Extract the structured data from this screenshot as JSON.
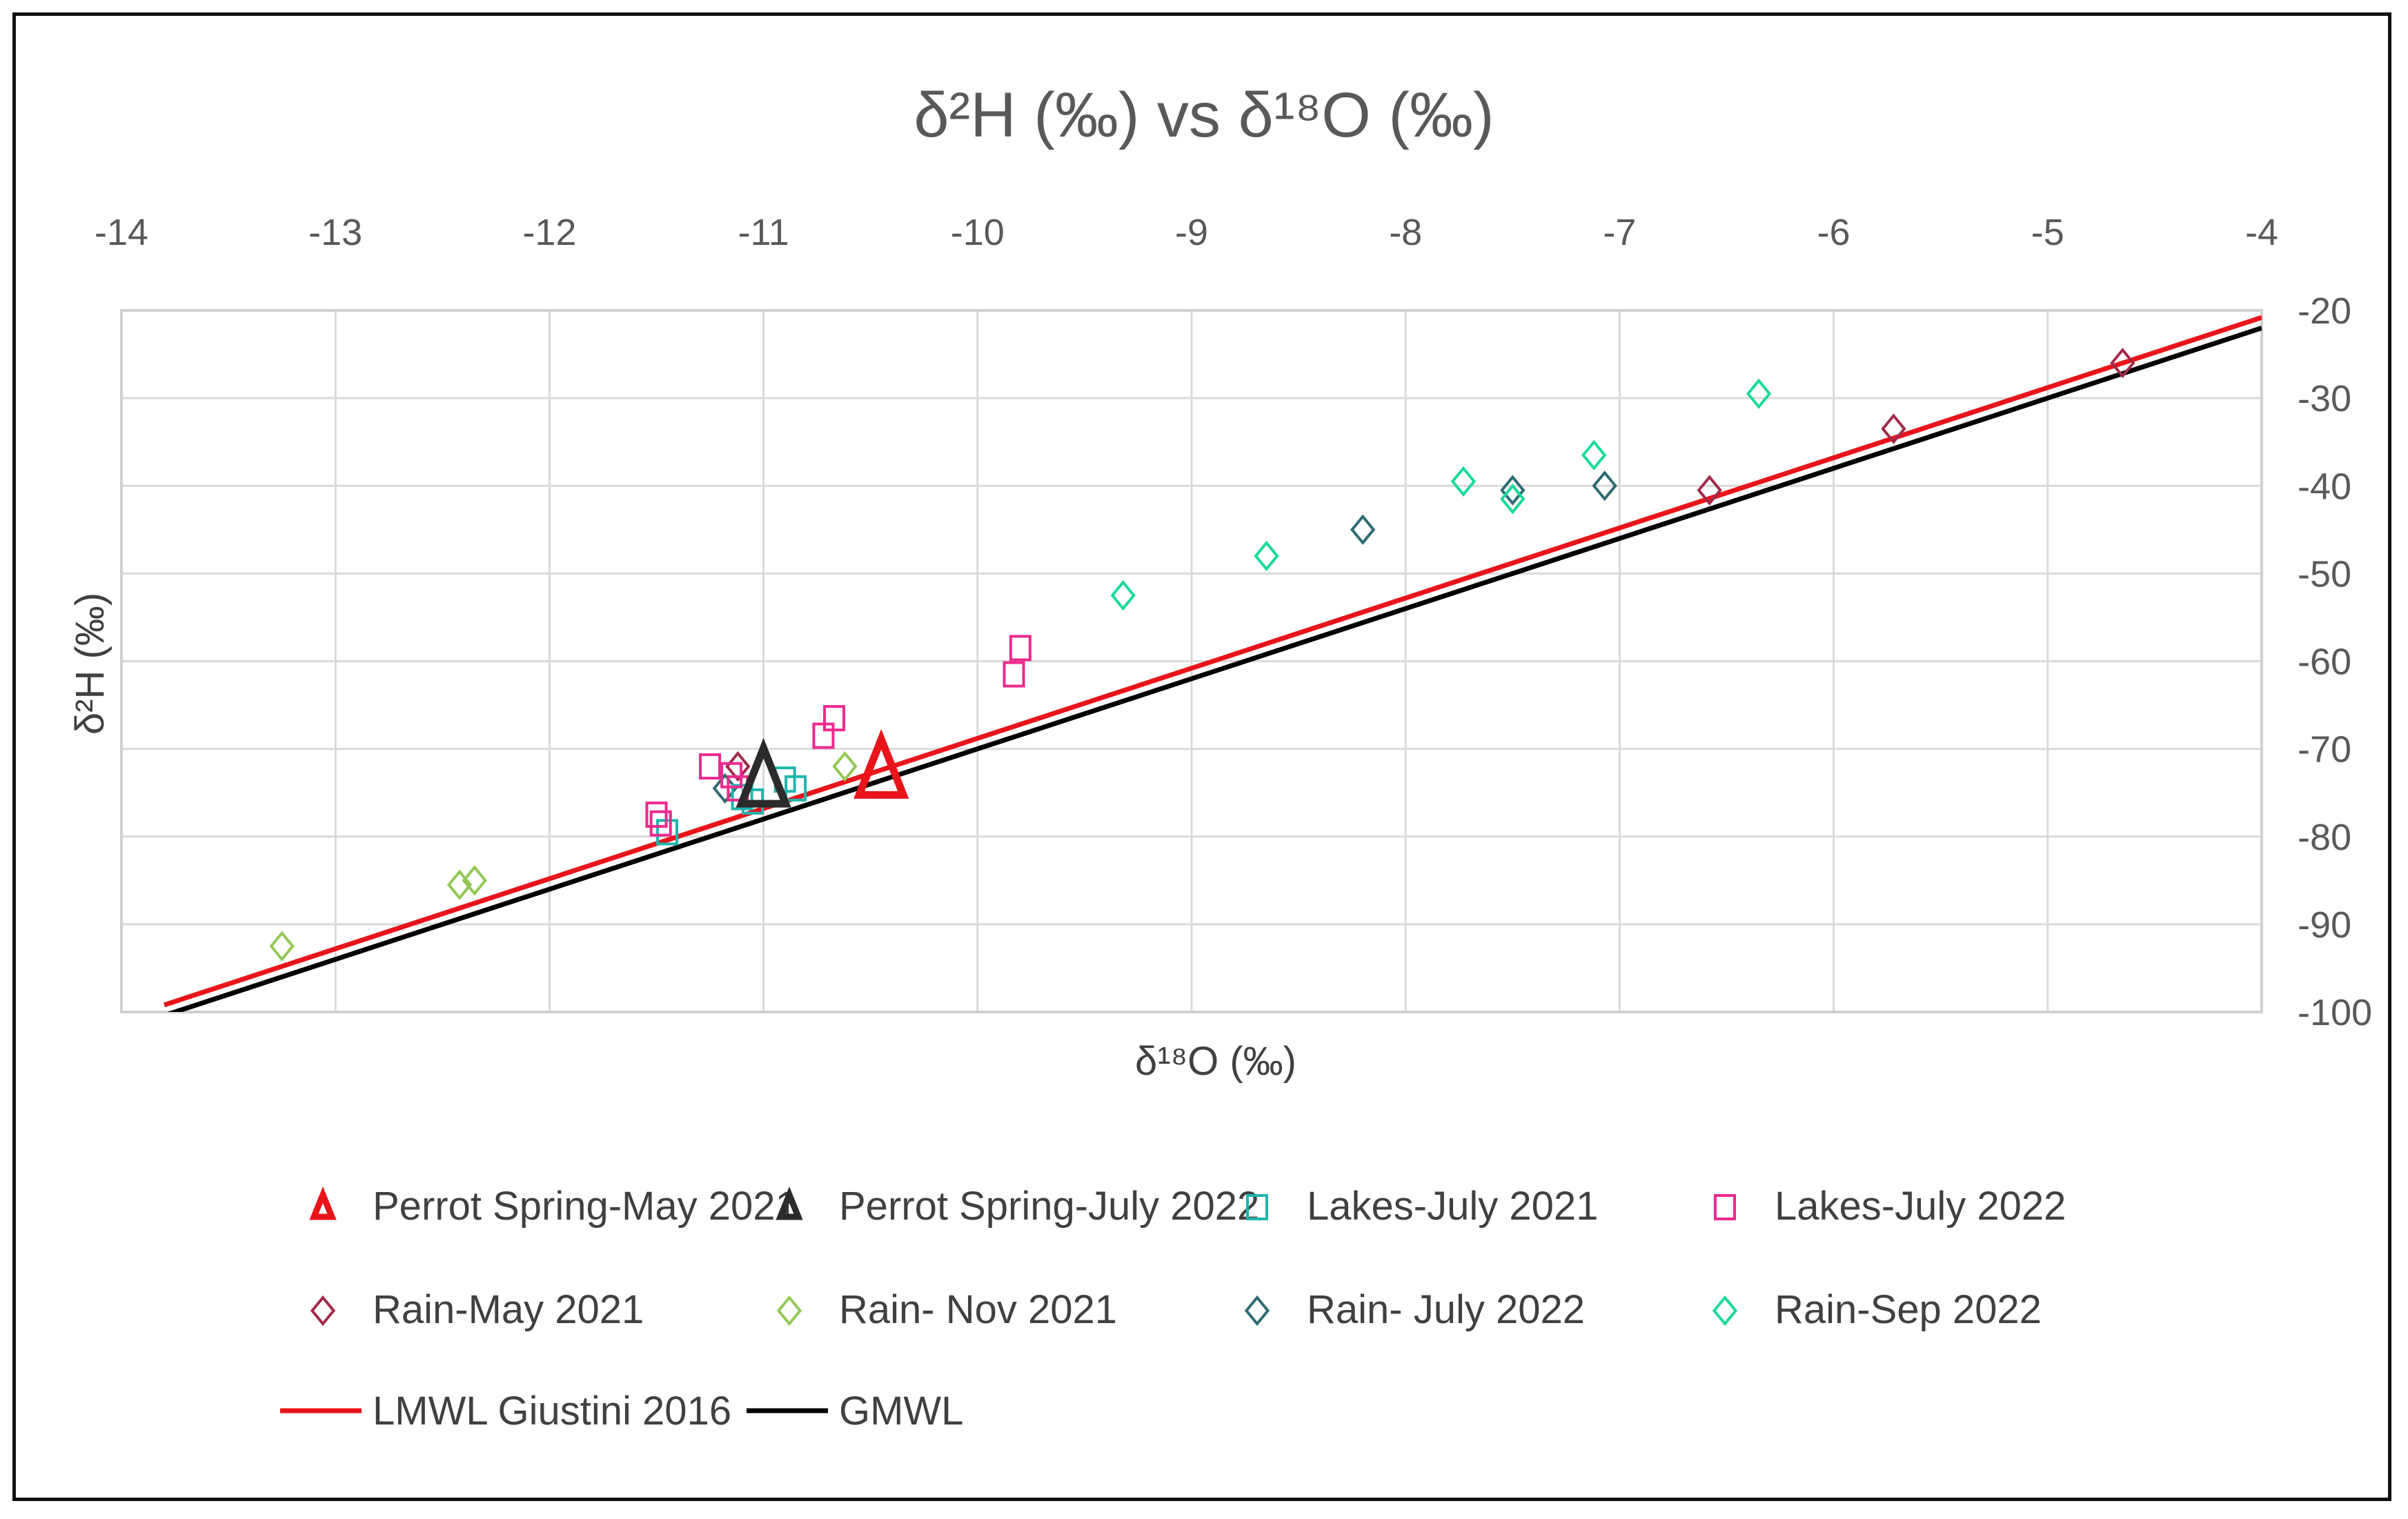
{
  "chart_data": {
    "type": "scatter",
    "title": "δ²H (‰) vs δ¹⁸O (‰)",
    "xlabel": "δ¹⁸O (‰)",
    "ylabel": "δ²H (‰)",
    "xlim": [
      -14,
      -4
    ],
    "ylim": [
      -100,
      -20
    ],
    "x_ticks": [
      -14,
      -13,
      -12,
      -11,
      -10,
      -9,
      -8,
      -7,
      -6,
      -5,
      -4
    ],
    "y_ticks": [
      -20,
      -30,
      -40,
      -50,
      -60,
      -70,
      -80,
      -90,
      -100
    ],
    "x_tick_labels": [
      "-14",
      "-13",
      "-12",
      "-11",
      "-10",
      "-9",
      "-8",
      "-7",
      "-6",
      "-5",
      "-4"
    ],
    "y_tick_labels": [
      "-20",
      "-30",
      "-40",
      "-50",
      "-60",
      "-70",
      "-80",
      "-90",
      "-100"
    ],
    "x_axis_position": "top",
    "y_axis_position": "right",
    "grid": true,
    "legend_position": "bottom",
    "series": [
      {
        "name": "Perrot Spring-May 2021",
        "marker": "triangle",
        "color": "#e8141a",
        "size": "large",
        "points": [
          [
            -10.45,
            -73.0
          ]
        ]
      },
      {
        "name": "Perrot Spring-July 2022",
        "marker": "triangle",
        "color": "#2b2b2b",
        "size": "large",
        "points": [
          [
            -11.0,
            -74.0
          ]
        ]
      },
      {
        "name": "Lakes-July 2021",
        "marker": "square",
        "color": "#1fb5ad",
        "size": "normal",
        "points": [
          [
            -11.45,
            -79.5
          ],
          [
            -11.1,
            -75.5
          ],
          [
            -11.05,
            -76.0
          ],
          [
            -10.9,
            -73.5
          ],
          [
            -10.85,
            -74.5
          ]
        ]
      },
      {
        "name": "Lakes-July 2022",
        "marker": "square",
        "color": "#ec2a8e",
        "size": "normal",
        "points": [
          [
            -11.5,
            -77.5
          ],
          [
            -11.48,
            -78.5
          ],
          [
            -11.25,
            -72.0
          ],
          [
            -11.15,
            -73.0
          ],
          [
            -11.12,
            -74.5
          ],
          [
            -10.72,
            -68.5
          ],
          [
            -10.67,
            -66.5
          ],
          [
            -9.83,
            -61.5
          ],
          [
            -9.8,
            -58.5
          ]
        ]
      },
      {
        "name": "Rain-May 2021",
        "marker": "diamond",
        "color": "#a12a4a",
        "size": "normal",
        "points": [
          [
            -11.12,
            -72.0
          ],
          [
            -6.58,
            -40.5
          ],
          [
            -5.72,
            -33.5
          ],
          [
            -4.65,
            -26.0
          ]
        ]
      },
      {
        "name": "Rain- Nov 2021",
        "marker": "diamond",
        "color": "#92c855",
        "size": "normal",
        "points": [
          [
            -13.25,
            -92.5
          ],
          [
            -12.42,
            -85.5
          ],
          [
            -12.35,
            -85.0
          ],
          [
            -10.62,
            -72.0
          ]
        ]
      },
      {
        "name": "Rain- July 2022",
        "marker": "diamond",
        "color": "#2e6b73",
        "size": "normal",
        "points": [
          [
            -11.18,
            -74.5
          ],
          [
            -8.2,
            -45.0
          ],
          [
            -7.5,
            -40.5
          ],
          [
            -7.07,
            -40.0
          ]
        ]
      },
      {
        "name": "Rain-Sep 2022",
        "marker": "diamond",
        "color": "#18d99a",
        "size": "normal",
        "points": [
          [
            -9.32,
            -52.5
          ],
          [
            -8.65,
            -48.0
          ],
          [
            -7.73,
            -39.5
          ],
          [
            -7.5,
            -41.5
          ],
          [
            -7.12,
            -36.5
          ],
          [
            -6.35,
            -29.5
          ]
        ]
      }
    ],
    "lines": [
      {
        "name": "LMWL Giustini 2016",
        "color": "#e8141a",
        "slope": 8.0,
        "intercept": 11.2,
        "x_range": [
          -13.8,
          -4
        ]
      },
      {
        "name": "GMWL",
        "color": "#000000",
        "slope": 8.0,
        "intercept": 10.0,
        "x_range": [
          -13.8,
          -4
        ]
      }
    ]
  }
}
